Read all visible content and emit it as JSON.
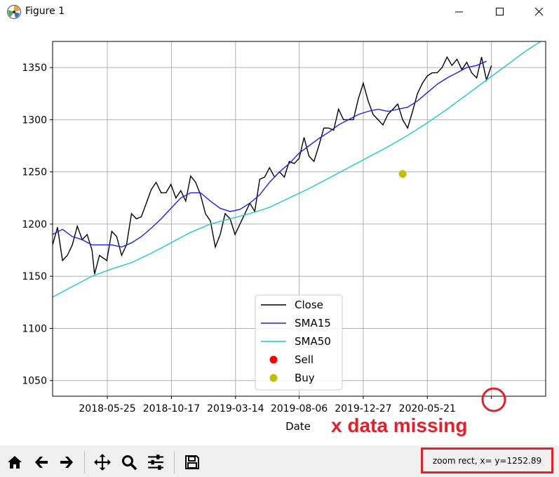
{
  "window": {
    "title": "Figure 1",
    "icon": "matplotlib-logo-icon",
    "controls": [
      "minimize-icon",
      "maximize-icon",
      "close-icon"
    ]
  },
  "chart_data": {
    "type": "line",
    "title": "",
    "xlabel": "Date",
    "ylabel": "",
    "x_tick_labels": [
      "2018-05-25",
      "2018-10-17",
      "2019-03-14",
      "2019-08-06",
      "2019-12-27",
      "2020-05-21"
    ],
    "y_ticks": [
      1050,
      1100,
      1150,
      1200,
      1250,
      1300,
      1350
    ],
    "ylim": [
      1035,
      1375
    ],
    "grid": true,
    "legend_position": "lower center",
    "series": [
      {
        "name": "Close",
        "color": "#000000",
        "kind": "line",
        "points": [
          [
            0.0,
            1180
          ],
          [
            0.01,
            1197
          ],
          [
            0.02,
            1165
          ],
          [
            0.03,
            1170
          ],
          [
            0.04,
            1180
          ],
          [
            0.05,
            1198
          ],
          [
            0.06,
            1185
          ],
          [
            0.07,
            1190
          ],
          [
            0.08,
            1175
          ],
          [
            0.085,
            1152
          ],
          [
            0.095,
            1170
          ],
          [
            0.11,
            1165
          ],
          [
            0.12,
            1193
          ],
          [
            0.13,
            1188
          ],
          [
            0.14,
            1170
          ],
          [
            0.15,
            1180
          ],
          [
            0.16,
            1210
          ],
          [
            0.17,
            1205
          ],
          [
            0.18,
            1207
          ],
          [
            0.19,
            1220
          ],
          [
            0.2,
            1233
          ],
          [
            0.21,
            1240
          ],
          [
            0.22,
            1230
          ],
          [
            0.23,
            1230
          ],
          [
            0.24,
            1238
          ],
          [
            0.25,
            1225
          ],
          [
            0.26,
            1232
          ],
          [
            0.27,
            1222
          ],
          [
            0.28,
            1246
          ],
          [
            0.29,
            1240
          ],
          [
            0.3,
            1228
          ],
          [
            0.31,
            1210
          ],
          [
            0.32,
            1203
          ],
          [
            0.33,
            1178
          ],
          [
            0.34,
            1190
          ],
          [
            0.35,
            1210
          ],
          [
            0.36,
            1205
          ],
          [
            0.37,
            1190
          ],
          [
            0.38,
            1200
          ],
          [
            0.39,
            1210
          ],
          [
            0.4,
            1220
          ],
          [
            0.41,
            1212
          ],
          [
            0.42,
            1243
          ],
          [
            0.43,
            1245
          ],
          [
            0.44,
            1254
          ],
          [
            0.45,
            1245
          ],
          [
            0.46,
            1250
          ],
          [
            0.47,
            1245
          ],
          [
            0.48,
            1260
          ],
          [
            0.49,
            1258
          ],
          [
            0.5,
            1263
          ],
          [
            0.51,
            1283
          ],
          [
            0.52,
            1265
          ],
          [
            0.53,
            1260
          ],
          [
            0.54,
            1275
          ],
          [
            0.55,
            1292
          ],
          [
            0.56,
            1292
          ],
          [
            0.57,
            1290
          ],
          [
            0.58,
            1310
          ],
          [
            0.59,
            1300
          ],
          [
            0.6,
            1300
          ],
          [
            0.61,
            1300
          ],
          [
            0.62,
            1320
          ],
          [
            0.63,
            1335
          ],
          [
            0.64,
            1318
          ],
          [
            0.65,
            1305
          ],
          [
            0.66,
            1300
          ],
          [
            0.67,
            1295
          ],
          [
            0.68,
            1305
          ],
          [
            0.69,
            1310
          ],
          [
            0.7,
            1315
          ],
          [
            0.71,
            1300
          ],
          [
            0.72,
            1292
          ],
          [
            0.73,
            1308
          ],
          [
            0.74,
            1325
          ],
          [
            0.75,
            1335
          ],
          [
            0.76,
            1342
          ],
          [
            0.77,
            1345
          ],
          [
            0.78,
            1345
          ],
          [
            0.79,
            1350
          ],
          [
            0.8,
            1360
          ],
          [
            0.81,
            1352
          ],
          [
            0.82,
            1358
          ],
          [
            0.83,
            1348
          ],
          [
            0.84,
            1355
          ],
          [
            0.85,
            1345
          ],
          [
            0.86,
            1340
          ],
          [
            0.87,
            1360
          ],
          [
            0.88,
            1338
          ],
          [
            0.89,
            1352
          ]
        ]
      },
      {
        "name": "SMA15",
        "color": "#1f1fe6",
        "kind": "line",
        "points": [
          [
            0.0,
            1190
          ],
          [
            0.02,
            1195
          ],
          [
            0.04,
            1188
          ],
          [
            0.06,
            1185
          ],
          [
            0.08,
            1180
          ],
          [
            0.1,
            1180
          ],
          [
            0.12,
            1180
          ],
          [
            0.14,
            1178
          ],
          [
            0.16,
            1182
          ],
          [
            0.18,
            1188
          ],
          [
            0.2,
            1196
          ],
          [
            0.22,
            1205
          ],
          [
            0.24,
            1215
          ],
          [
            0.26,
            1225
          ],
          [
            0.28,
            1230
          ],
          [
            0.3,
            1230
          ],
          [
            0.32,
            1222
          ],
          [
            0.34,
            1215
          ],
          [
            0.36,
            1212
          ],
          [
            0.38,
            1214
          ],
          [
            0.4,
            1220
          ],
          [
            0.42,
            1228
          ],
          [
            0.44,
            1240
          ],
          [
            0.46,
            1250
          ],
          [
            0.48,
            1258
          ],
          [
            0.5,
            1268
          ],
          [
            0.52,
            1275
          ],
          [
            0.54,
            1282
          ],
          [
            0.56,
            1288
          ],
          [
            0.58,
            1295
          ],
          [
            0.6,
            1300
          ],
          [
            0.62,
            1305
          ],
          [
            0.64,
            1308
          ],
          [
            0.66,
            1310
          ],
          [
            0.68,
            1308
          ],
          [
            0.7,
            1310
          ],
          [
            0.72,
            1312
          ],
          [
            0.74,
            1318
          ],
          [
            0.76,
            1326
          ],
          [
            0.78,
            1334
          ],
          [
            0.8,
            1340
          ],
          [
            0.82,
            1345
          ],
          [
            0.84,
            1350
          ],
          [
            0.86,
            1352
          ],
          [
            0.88,
            1356
          ]
        ]
      },
      {
        "name": "SMA50",
        "color": "#20c8c8",
        "kind": "line",
        "points": [
          [
            0.0,
            1130
          ],
          [
            0.04,
            1140
          ],
          [
            0.08,
            1150
          ],
          [
            0.12,
            1157
          ],
          [
            0.16,
            1163
          ],
          [
            0.2,
            1172
          ],
          [
            0.24,
            1182
          ],
          [
            0.28,
            1192
          ],
          [
            0.32,
            1200
          ],
          [
            0.36,
            1205
          ],
          [
            0.4,
            1210
          ],
          [
            0.44,
            1216
          ],
          [
            0.48,
            1225
          ],
          [
            0.52,
            1234
          ],
          [
            0.56,
            1244
          ],
          [
            0.6,
            1254
          ],
          [
            0.64,
            1264
          ],
          [
            0.68,
            1274
          ],
          [
            0.72,
            1285
          ],
          [
            0.76,
            1297
          ],
          [
            0.8,
            1310
          ],
          [
            0.84,
            1324
          ],
          [
            0.88,
            1338
          ],
          [
            0.92,
            1352
          ],
          [
            0.96,
            1366
          ],
          [
            1.0,
            1378
          ]
        ]
      },
      {
        "name": "Sell",
        "color": "#ff0000",
        "kind": "marker",
        "points": []
      },
      {
        "name": "Buy",
        "color": "#bfbf00",
        "kind": "marker",
        "points": [
          [
            0.71,
            1248
          ]
        ]
      }
    ]
  },
  "annotation": {
    "text": "x data missing",
    "color": "#e0202a"
  },
  "toolbar": {
    "buttons": [
      "home-icon",
      "back-icon",
      "forward-icon",
      "pan-icon",
      "zoom-icon",
      "configure-subplots-icon",
      "save-icon"
    ],
    "status": "zoom rect, x= y=1252.89"
  }
}
